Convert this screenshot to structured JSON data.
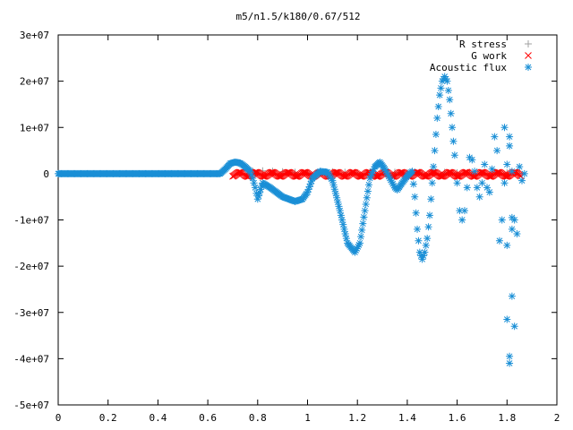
{
  "chart_data": {
    "type": "scatter",
    "title": "m5/n1.5/k180/0.67/512",
    "xlabel": "",
    "ylabel": "",
    "xlim": [
      0,
      2
    ],
    "ylim": [
      -50000000,
      30000000
    ],
    "x_ticks": [
      "0",
      "0.2",
      "0.4",
      "0.6",
      "0.8",
      "1",
      "1.2",
      "1.4",
      "1.6",
      "1.8",
      "2"
    ],
    "y_ticks": [
      "3e+07",
      "2e+07",
      "1e+07",
      "0",
      "-1e+07",
      "-2e+07",
      "-3e+07",
      "-4e+07",
      "-5e+07"
    ],
    "grid": false,
    "legend_position": "top-right",
    "series": [
      {
        "name": "R stress",
        "marker": "plus",
        "color": "#a0a0a0",
        "x": [
          0.78,
          0.82,
          0.86,
          0.9,
          0.95,
          1.0,
          1.05,
          1.1,
          1.15,
          1.2,
          1.25,
          1.3,
          1.35,
          1.4,
          1.45,
          1.5,
          1.55,
          1.6,
          1.65,
          1.7,
          1.75,
          1.8,
          1.85
        ],
        "y": [
          500000,
          600000,
          500000,
          400000,
          300000,
          200000,
          300000,
          400000,
          300000,
          200000,
          300000,
          400000,
          300000,
          200000,
          300000,
          400000,
          300000,
          200000,
          300000,
          200000,
          300000,
          200000,
          100000
        ]
      },
      {
        "name": "G work",
        "marker": "cross",
        "color": "#ff0000",
        "x_range": [
          0.7,
          1.86
        ],
        "y_band": [
          -600000,
          300000
        ]
      },
      {
        "name": "Acoustic flux",
        "marker": "star",
        "color": "#1a8fd6",
        "x": [
          0.0,
          0.05,
          0.1,
          0.15,
          0.2,
          0.25,
          0.3,
          0.35,
          0.4,
          0.45,
          0.5,
          0.55,
          0.6,
          0.65,
          0.67,
          0.69,
          0.71,
          0.73,
          0.75,
          0.77,
          0.78,
          0.79,
          0.8,
          0.82,
          0.85,
          0.9,
          0.95,
          0.98,
          1.0,
          1.02,
          1.05,
          1.08,
          1.1,
          1.13,
          1.16,
          1.19,
          1.21,
          1.23,
          1.25,
          1.27,
          1.29,
          1.31,
          1.33,
          1.35,
          1.36,
          1.38,
          1.4,
          1.42,
          1.43,
          1.44,
          1.45,
          1.46,
          1.47,
          1.48,
          1.49,
          1.5,
          1.51,
          1.52,
          1.53,
          1.54,
          1.55,
          1.56,
          1.57,
          1.58,
          1.59,
          1.6,
          1.61,
          1.62,
          1.63,
          1.64,
          1.65,
          1.66,
          1.67,
          1.68,
          1.69,
          1.7,
          1.71,
          1.72,
          1.73,
          1.74,
          1.75,
          1.76,
          1.77,
          1.78,
          1.79,
          1.8,
          1.81,
          1.82,
          1.83,
          1.84,
          1.85,
          1.86,
          1.87,
          1.79,
          1.8,
          1.81,
          1.82,
          1.81,
          1.82,
          1.83,
          1.82,
          1.81,
          1.8
        ],
        "y": [
          0,
          0,
          0,
          0,
          0,
          0,
          0,
          0,
          0,
          0,
          0,
          0,
          0,
          0,
          1000000,
          2200000,
          2500000,
          2300000,
          1500000,
          500000,
          -1000000,
          -3000000,
          -5500000,
          -2000000,
          -3000000,
          -5000000,
          -6000000,
          -5500000,
          -4000000,
          -1000000,
          500000,
          300000,
          -1500000,
          -8000000,
          -15000000,
          -17000000,
          -15000000,
          -8000000,
          -1000000,
          1500000,
          2500000,
          1000000,
          -1000000,
          -3000000,
          -3500000,
          -2000000,
          -500000,
          500000,
          -5000000,
          -12000000,
          -17000000,
          -18500000,
          -17000000,
          -14000000,
          -9000000,
          -2000000,
          5000000,
          12000000,
          17000000,
          20000000,
          21000000,
          20000000,
          16000000,
          10000000,
          4000000,
          -2000000,
          -8000000,
          -10000000,
          -8000000,
          -3000000,
          3500000,
          3000000,
          500000,
          -3000000,
          -5000000,
          -2000000,
          2000000,
          -3000000,
          -4000000,
          1000000,
          8000000,
          5000000,
          -14500000,
          -10000000,
          10000000,
          -15500000,
          8000000,
          -9500000,
          -10000000,
          -13000000,
          1500000,
          -1500000,
          0,
          -2000000,
          -31500000,
          -41000000,
          -26500000,
          -39500000,
          -12000000,
          -33000000,
          500000,
          6000000,
          2000000
        ]
      }
    ]
  }
}
